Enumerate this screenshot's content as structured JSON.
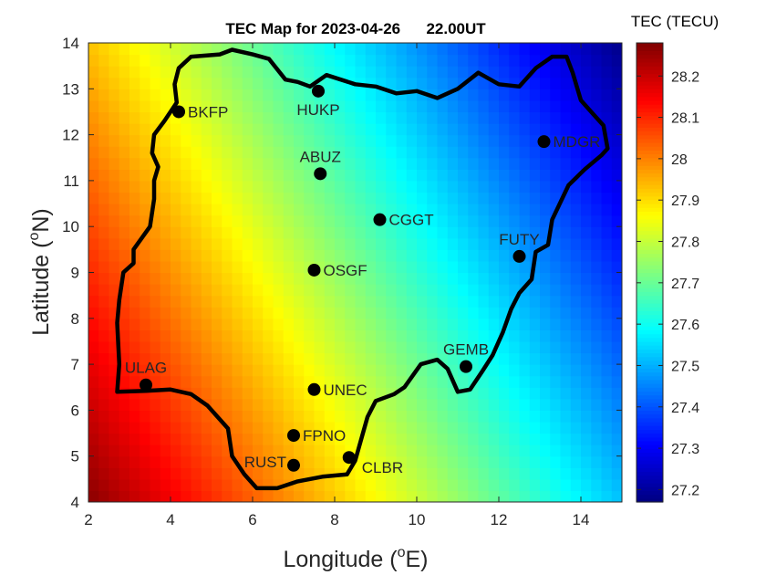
{
  "chart_data": {
    "type": "heatmap",
    "title": "TEC Map for 2023-04-26      22.00UT",
    "xlabel": "Longitude (",
    "xlabel_sup": "o",
    "xlabel_tail": "E)",
    "ylabel": "Latitude (",
    "ylabel_sup": "o",
    "ylabel_tail": "N)",
    "xlim": [
      2,
      15
    ],
    "ylim": [
      4,
      14
    ],
    "xticks": [
      2,
      4,
      6,
      8,
      10,
      12,
      14
    ],
    "yticks": [
      4,
      5,
      6,
      7,
      8,
      9,
      10,
      11,
      12,
      13,
      14
    ],
    "colorbar": {
      "label": "TEC (TECU)",
      "range": [
        27.17,
        28.28
      ],
      "ticks": [
        "27.2",
        "27.3",
        "27.4",
        "27.5",
        "27.6",
        "27.7",
        "27.8",
        "27.9",
        "28",
        "28.1",
        "28.2"
      ],
      "colormap": "jet"
    },
    "field": {
      "description": "TEC decreases from south-west to north-east",
      "corner_values": {
        "sw": 28.27,
        "nw": 27.93,
        "se": 27.52,
        "ne": 27.18
      }
    },
    "stations": [
      {
        "name": "BKFP",
        "lon": 4.2,
        "lat": 12.5,
        "label_pos": "right"
      },
      {
        "name": "HUKP",
        "lon": 7.6,
        "lat": 12.95,
        "label_pos": "below"
      },
      {
        "name": "MDGR",
        "lon": 13.1,
        "lat": 11.85,
        "label_pos": "right"
      },
      {
        "name": "ABUZ",
        "lon": 7.65,
        "lat": 11.15,
        "label_pos": "above"
      },
      {
        "name": "CGGT",
        "lon": 9.1,
        "lat": 10.15,
        "label_pos": "right"
      },
      {
        "name": "FUTY",
        "lon": 12.5,
        "lat": 9.35,
        "label_pos": "above"
      },
      {
        "name": "OSGF",
        "lon": 7.5,
        "lat": 9.05,
        "label_pos": "right"
      },
      {
        "name": "GEMB",
        "lon": 11.2,
        "lat": 6.95,
        "label_pos": "above"
      },
      {
        "name": "ULAG",
        "lon": 3.4,
        "lat": 6.55,
        "label_pos": "above"
      },
      {
        "name": "UNEC",
        "lon": 7.5,
        "lat": 6.45,
        "label_pos": "right"
      },
      {
        "name": "FPNO",
        "lon": 7.0,
        "lat": 5.45,
        "label_pos": "right"
      },
      {
        "name": "RUST",
        "lon": 7.0,
        "lat": 4.8,
        "label_pos": "left"
      },
      {
        "name": "CLBR",
        "lon": 8.35,
        "lat": 4.97,
        "label_pos": "below-right"
      }
    ],
    "boundary": {
      "name": "Nigeria",
      "coords": [
        [
          2.7,
          6.4
        ],
        [
          2.75,
          7.0
        ],
        [
          2.7,
          7.9
        ],
        [
          2.75,
          8.4
        ],
        [
          2.85,
          9.0
        ],
        [
          3.1,
          9.2
        ],
        [
          3.1,
          9.5
        ],
        [
          3.5,
          10.0
        ],
        [
          3.6,
          10.6
        ],
        [
          3.6,
          11.0
        ],
        [
          3.7,
          11.3
        ],
        [
          3.55,
          11.6
        ],
        [
          3.6,
          12.0
        ],
        [
          3.85,
          12.3
        ],
        [
          4.15,
          12.7
        ],
        [
          4.1,
          13.1
        ],
        [
          4.2,
          13.45
        ],
        [
          4.5,
          13.7
        ],
        [
          5.2,
          13.75
        ],
        [
          5.5,
          13.85
        ],
        [
          6.0,
          13.75
        ],
        [
          6.4,
          13.65
        ],
        [
          6.8,
          13.2
        ],
        [
          7.1,
          13.15
        ],
        [
          7.4,
          13.05
        ],
        [
          7.8,
          13.3
        ],
        [
          8.5,
          13.1
        ],
        [
          9.0,
          13.05
        ],
        [
          9.5,
          12.9
        ],
        [
          10.0,
          12.95
        ],
        [
          10.5,
          12.8
        ],
        [
          11.0,
          13.0
        ],
        [
          11.5,
          13.35
        ],
        [
          12.0,
          13.1
        ],
        [
          12.5,
          13.05
        ],
        [
          12.9,
          13.45
        ],
        [
          13.3,
          13.7
        ],
        [
          13.65,
          13.7
        ],
        [
          13.8,
          13.35
        ],
        [
          14.0,
          12.75
        ],
        [
          14.3,
          12.45
        ],
        [
          14.55,
          12.2
        ],
        [
          14.65,
          11.7
        ],
        [
          14.5,
          11.55
        ],
        [
          14.1,
          11.25
        ],
        [
          13.7,
          10.9
        ],
        [
          13.3,
          10.15
        ],
        [
          13.2,
          9.6
        ],
        [
          12.9,
          9.45
        ],
        [
          12.8,
          8.85
        ],
        [
          12.5,
          8.55
        ],
        [
          12.3,
          8.2
        ],
        [
          12.1,
          7.7
        ],
        [
          11.85,
          7.2
        ],
        [
          11.6,
          6.85
        ],
        [
          11.3,
          6.45
        ],
        [
          11.0,
          6.4
        ],
        [
          10.75,
          6.9
        ],
        [
          10.5,
          7.1
        ],
        [
          10.1,
          7.0
        ],
        [
          9.7,
          6.5
        ],
        [
          9.45,
          6.35
        ],
        [
          9.0,
          6.2
        ],
        [
          8.8,
          5.85
        ],
        [
          8.5,
          4.9
        ],
        [
          8.3,
          4.6
        ],
        [
          7.7,
          4.55
        ],
        [
          7.1,
          4.45
        ],
        [
          6.6,
          4.3
        ],
        [
          6.1,
          4.3
        ],
        [
          5.8,
          4.6
        ],
        [
          5.5,
          5.0
        ],
        [
          5.4,
          5.6
        ],
        [
          4.9,
          6.1
        ],
        [
          4.5,
          6.35
        ],
        [
          4.0,
          6.45
        ],
        [
          3.4,
          6.42
        ],
        [
          2.7,
          6.4
        ]
      ]
    }
  }
}
